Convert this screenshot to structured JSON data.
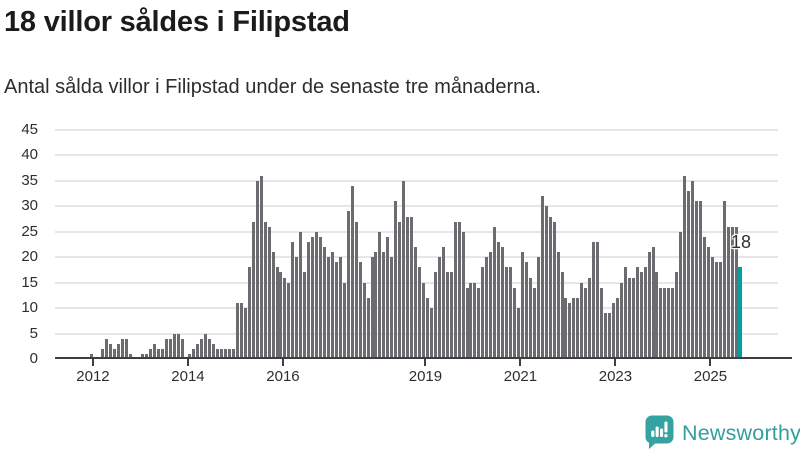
{
  "header": {
    "title": "18 villor såldes i Filipstad",
    "subtitle": "Antal sålda villor i Filipstad under de senaste tre månaderna."
  },
  "chart_data": {
    "type": "bar",
    "title": "18 villor såldes i Filipstad",
    "subtitle": "Antal sålda villor i Filipstad under de senaste tre månaderna.",
    "x_unit": "month",
    "x_start": "2011-12",
    "x_end": "2025-08",
    "values": [
      1,
      0,
      0,
      2,
      4,
      3,
      2,
      3,
      4,
      4,
      1,
      0,
      0,
      1,
      1,
      2,
      3,
      2,
      2,
      4,
      4,
      5,
      5,
      4,
      0,
      1,
      2,
      3,
      4,
      5,
      4,
      3,
      2,
      2,
      2,
      2,
      2,
      11,
      11,
      10,
      18,
      27,
      35,
      36,
      27,
      26,
      21,
      18,
      17,
      16,
      15,
      23,
      20,
      25,
      17,
      23,
      24,
      25,
      24,
      22,
      20,
      21,
      19,
      20,
      15,
      29,
      34,
      27,
      19,
      15,
      12,
      20,
      21,
      25,
      21,
      24,
      20,
      31,
      27,
      35,
      28,
      28,
      22,
      18,
      15,
      12,
      10,
      17,
      20,
      22,
      17,
      17,
      27,
      27,
      25,
      14,
      15,
      15,
      14,
      18,
      20,
      21,
      26,
      23,
      22,
      18,
      18,
      14,
      10,
      21,
      19,
      16,
      14,
      20,
      32,
      30,
      28,
      27,
      21,
      17,
      12,
      11,
      12,
      12,
      15,
      14,
      16,
      23,
      23,
      14,
      9,
      9,
      11,
      12,
      15,
      18,
      16,
      16,
      18,
      17,
      18,
      21,
      22,
      17,
      14,
      14,
      14,
      14,
      17,
      25,
      36,
      33,
      35,
      31,
      31,
      24,
      22,
      20,
      19,
      19,
      31,
      26,
      26,
      26,
      18
    ],
    "highlight": {
      "index": 164,
      "value": 18,
      "label": "18",
      "color": "#00a2a0"
    },
    "bar_color": "#6b6b70",
    "ylim": [
      0,
      45
    ],
    "yticks": [
      0,
      5,
      10,
      15,
      20,
      25,
      30,
      35,
      40,
      45
    ],
    "xticks": [
      {
        "label": "2012",
        "month_index": 1
      },
      {
        "label": "2014",
        "month_index": 25
      },
      {
        "label": "2016",
        "month_index": 49
      },
      {
        "label": "2019",
        "month_index": 85
      },
      {
        "label": "2021",
        "month_index": 109
      },
      {
        "label": "2023",
        "month_index": 133
      },
      {
        "label": "2025",
        "month_index": 157
      }
    ],
    "grid": true,
    "legend": "none"
  },
  "branding": {
    "name": "Newsworthy",
    "color": "#339e9c",
    "icon": "speech-bubble-bar-chart"
  }
}
